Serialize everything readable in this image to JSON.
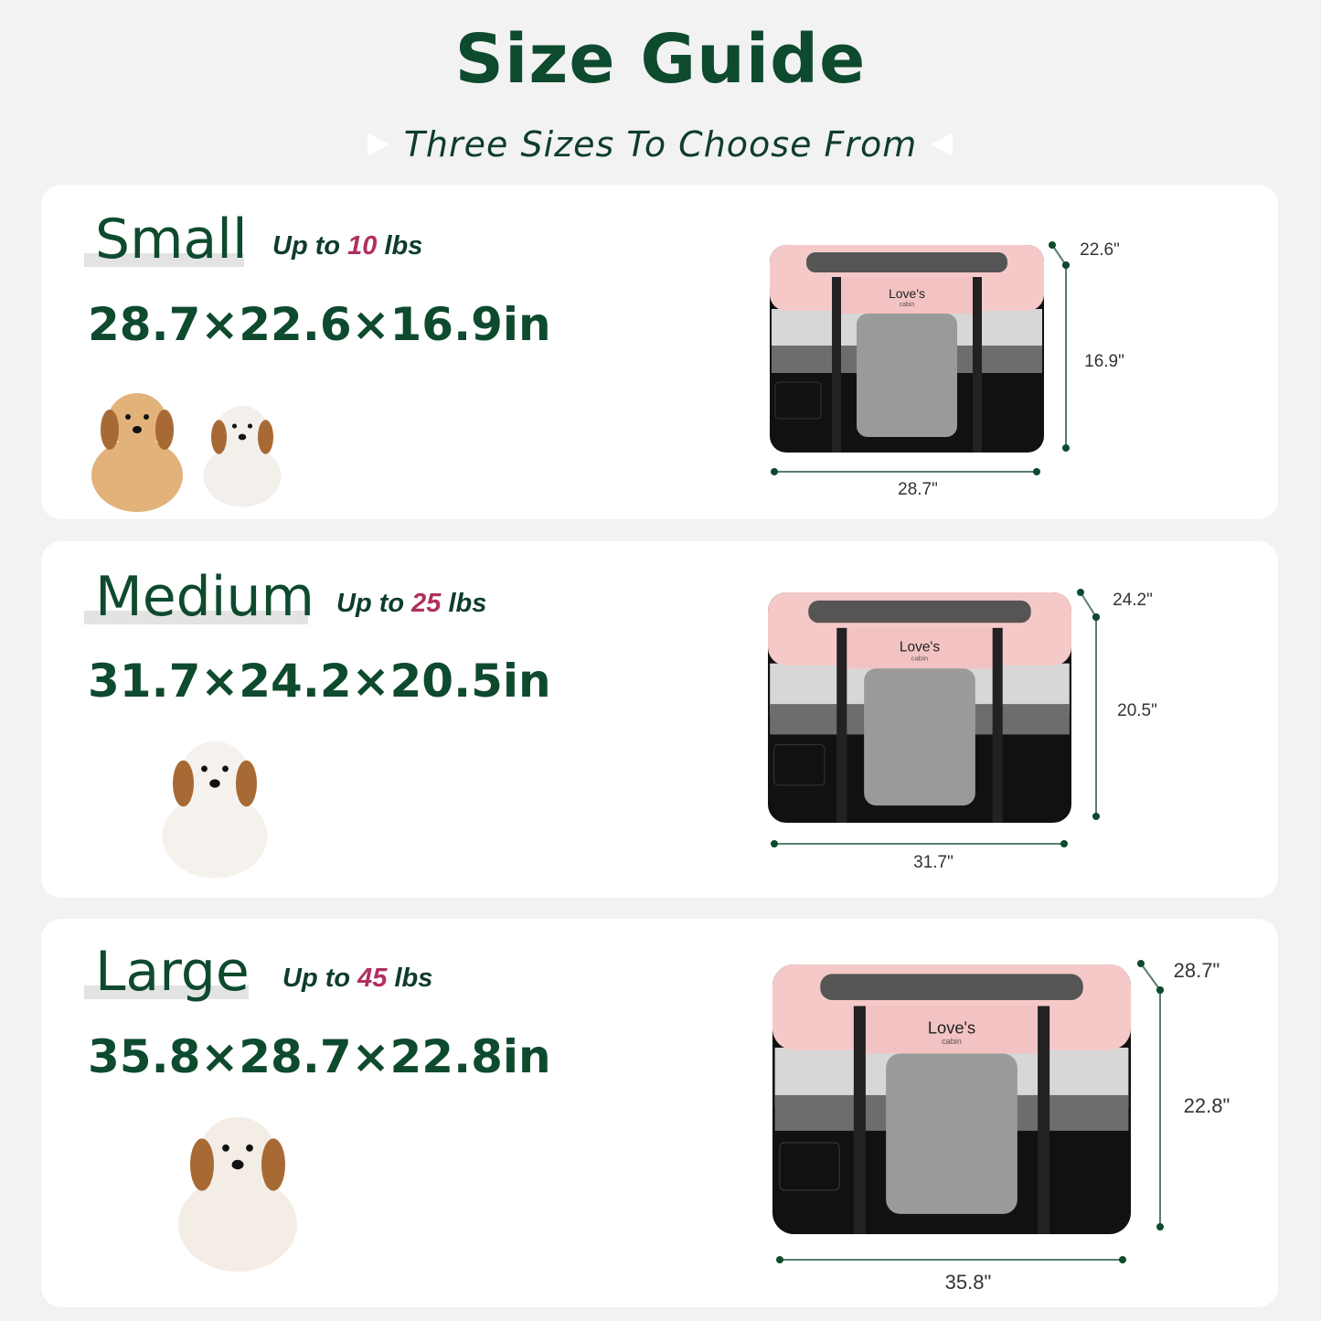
{
  "header": {
    "title": "Size Guide",
    "subtitle": "Three Sizes To Choose From"
  },
  "colors": {
    "brand_green": "#0e4a2e",
    "weight_accent": "#b03060",
    "playpen_pink": "#f6c9c9",
    "playpen_black": "#111111"
  },
  "brand": {
    "name": "Love's",
    "sub": "cabin"
  },
  "sizes": [
    {
      "name": "Small",
      "weight_prefix": "Up to",
      "weight_value": "10",
      "weight_unit": "lbs",
      "dimensions": "28.7×22.6×16.9in",
      "length": "28.7\"",
      "depth": "22.6\"",
      "height": "16.9\"",
      "pets": [
        "dog",
        "cat"
      ]
    },
    {
      "name": "Medium",
      "weight_prefix": "Up to",
      "weight_value": "25",
      "weight_unit": "lbs",
      "dimensions": "31.7×24.2×20.5in",
      "length": "31.7\"",
      "depth": "24.2\"",
      "height": "20.5\"",
      "pets": [
        "dog"
      ]
    },
    {
      "name": "Large",
      "weight_prefix": "Up to",
      "weight_value": "45",
      "weight_unit": "lbs",
      "dimensions": "35.8×28.7×22.8in",
      "length": "35.8\"",
      "depth": "28.7\"",
      "height": "22.8\"",
      "pets": [
        "dog"
      ]
    }
  ]
}
